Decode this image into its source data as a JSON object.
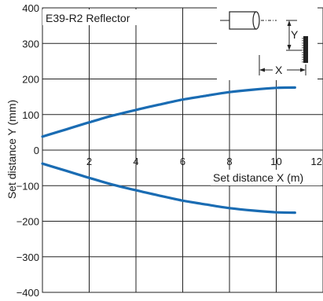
{
  "chart_data": {
    "type": "line",
    "title": "E39-R2 Reflector",
    "xlabel": "Set distance X (m)",
    "ylabel": "Set distance Y (mm)",
    "xlim": [
      0,
      12
    ],
    "ylim": [
      -400,
      400
    ],
    "xticks": [
      2,
      4,
      6,
      8,
      10,
      12
    ],
    "yticks": [
      400,
      300,
      200,
      100,
      0,
      -100,
      -200,
      -300,
      -400
    ],
    "ytick_labels": [
      "400",
      "300",
      "200",
      "100",
      "0",
      "−100",
      "−200",
      "−300",
      "−400"
    ],
    "grid": true,
    "series": [
      {
        "color": "#1a6cb3",
        "x": [
          0,
          1,
          2,
          3,
          4,
          5,
          6,
          7,
          8,
          9,
          10,
          10.8
        ],
        "y": [
          38,
          58,
          78,
          97,
          113,
          128,
          142,
          153,
          163,
          170,
          175,
          176
        ]
      },
      {
        "color": "#1a6cb3",
        "x": [
          0,
          1,
          2,
          3,
          4,
          5,
          6,
          7,
          8,
          9,
          10,
          10.8
        ],
        "y": [
          -38,
          -58,
          -78,
          -97,
          -113,
          -128,
          -142,
          -153,
          -163,
          -170,
          -175,
          -176
        ]
      }
    ],
    "inset": {
      "y_label": "Y",
      "x_label": "X"
    }
  }
}
